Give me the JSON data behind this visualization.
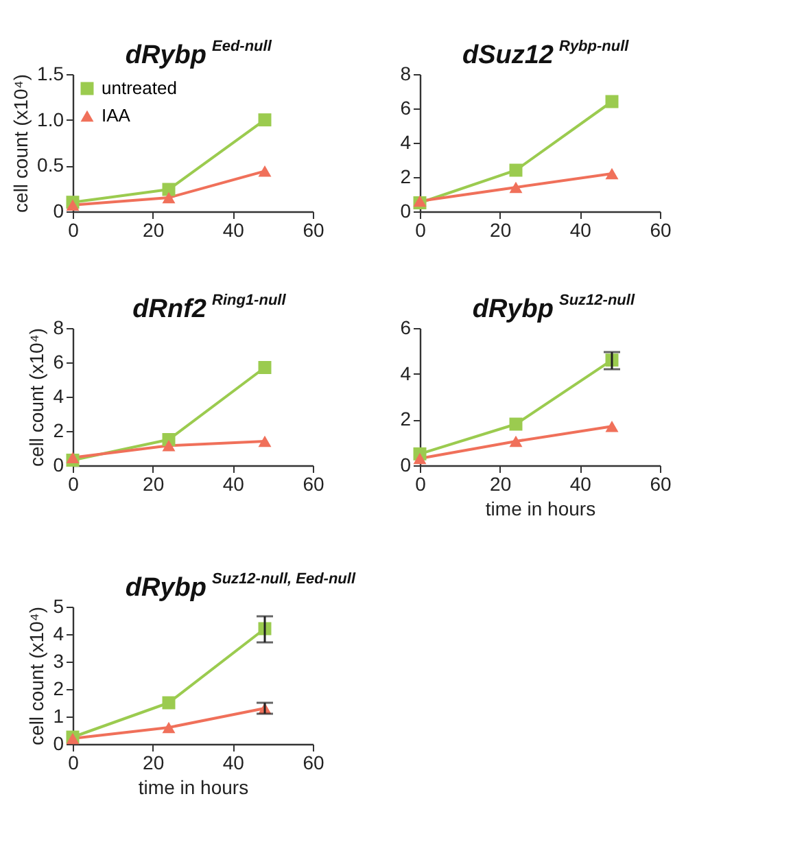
{
  "chart_data": [
    {
      "type": "line",
      "title": "dRybp$^{Eed-null}$",
      "ylabel": "cell count (x10⁴)",
      "x": [
        0,
        24,
        48
      ],
      "xlim": [
        0,
        60
      ],
      "xticks": [
        0,
        20,
        40,
        60
      ],
      "ylim": [
        0,
        1.5
      ],
      "yticks": [
        0,
        0.5,
        {
          "value": 1,
          "label": "1.0"
        },
        1.5
      ],
      "legend": "top left",
      "grid": false,
      "series": [
        {
          "name": "untreated",
          "color": "#9bcb4f",
          "marker": "square",
          "values": [
            0.1,
            0.24,
            1.0
          ]
        },
        {
          "name": "IAA",
          "color": "#f0705a",
          "marker": "triangle",
          "values": [
            0.07,
            0.15,
            0.44
          ]
        }
      ]
    },
    {
      "type": "line",
      "title": "dSuz12$^{Rybp-null}$",
      "x": [
        0,
        24,
        48
      ],
      "xlim": [
        0,
        60
      ],
      "xticks": [
        0,
        20,
        40,
        60
      ],
      "ylim": [
        0,
        8
      ],
      "yticks": [
        0,
        2,
        4,
        6,
        8
      ],
      "grid": false,
      "series": [
        {
          "color": "#9bcb4f",
          "marker": "square",
          "values": [
            0.5,
            2.4,
            6.4
          ]
        },
        {
          "color": "#f0705a",
          "marker": "triangle",
          "values": [
            0.6,
            1.4,
            2.2
          ]
        }
      ]
    },
    {
      "type": "line",
      "title": "dRnf2$^{Ring1-null}$",
      "ylabel": "cell count (x10⁴)",
      "x": [
        0,
        24,
        48
      ],
      "xlim": [
        0,
        60
      ],
      "xticks": [
        0,
        20,
        40,
        60
      ],
      "ylim": [
        0,
        8
      ],
      "yticks": [
        0,
        2,
        4,
        6,
        8
      ],
      "grid": false,
      "series": [
        {
          "color": "#9bcb4f",
          "marker": "square",
          "values": [
            0.3,
            1.5,
            5.7
          ]
        },
        {
          "color": "#f0705a",
          "marker": "triangle",
          "values": [
            0.45,
            1.15,
            1.4
          ]
        }
      ]
    },
    {
      "type": "line",
      "title": "dRybp$^{Suz12-null}$",
      "xlabel": "time in hours",
      "x": [
        0,
        24,
        48
      ],
      "xlim": [
        0,
        60
      ],
      "xticks": [
        0,
        20,
        40,
        60
      ],
      "ylim": [
        0,
        6
      ],
      "yticks": [
        0,
        2,
        4,
        6
      ],
      "grid": false,
      "series": [
        {
          "color": "#9bcb4f",
          "marker": "square",
          "values": [
            0.5,
            1.8,
            4.6
          ],
          "errors": [
            null,
            null,
            [
              4.2,
              4.95
            ]
          ]
        },
        {
          "color": "#f0705a",
          "marker": "triangle",
          "values": [
            0.3,
            1.05,
            1.7
          ]
        }
      ]
    },
    {
      "type": "line",
      "title": "dRybp$^{Suz12-null, Eed-null}$",
      "ylabel": "cell count (x10⁴)",
      "xlabel": "time in hours",
      "x": [
        0,
        24,
        48
      ],
      "xlim": [
        0,
        60
      ],
      "xticks": [
        0,
        20,
        40,
        60
      ],
      "ylim": [
        0,
        5
      ],
      "yticks": [
        0,
        1,
        2,
        3,
        4,
        5
      ],
      "grid": false,
      "series": [
        {
          "color": "#9bcb4f",
          "marker": "square",
          "values": [
            0.25,
            1.5,
            4.2
          ],
          "errors": [
            null,
            null,
            [
              3.7,
              4.65
            ]
          ]
        },
        {
          "color": "#f0705a",
          "marker": "triangle",
          "values": [
            0.2,
            0.6,
            1.3
          ],
          "errors": [
            null,
            null,
            0.2
          ]
        }
      ]
    }
  ]
}
